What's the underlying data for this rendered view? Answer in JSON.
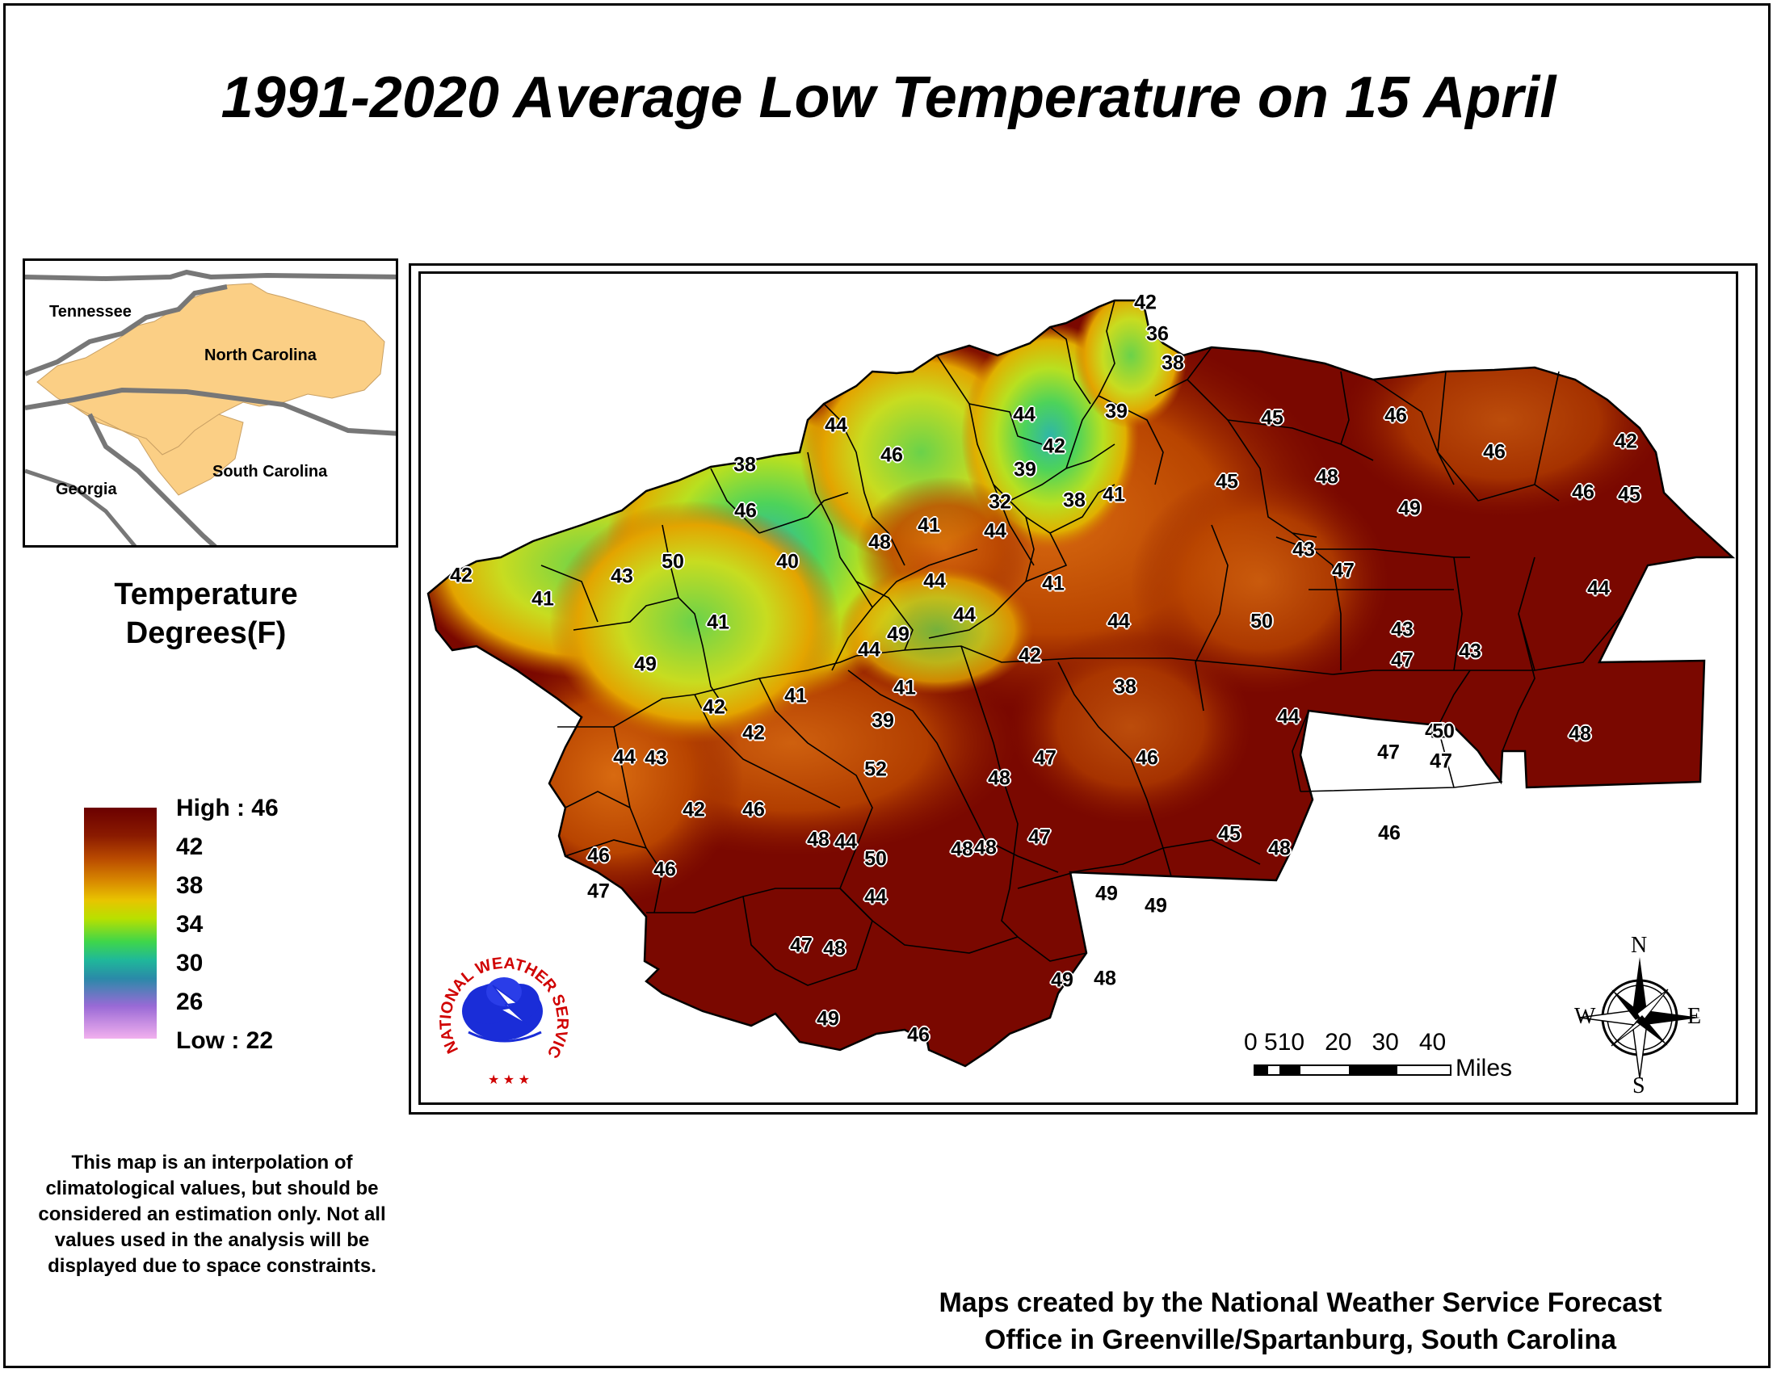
{
  "title": "1991-2020 Average Low Temperature on 15 April",
  "inset": {
    "labels": {
      "tennessee": "Tennessee",
      "north_carolina": "North Carolina",
      "georgia": "Georgia",
      "south_carolina": "South Carolina"
    },
    "highlight_color": "#fbcf85"
  },
  "legend": {
    "title_line1": "Temperature",
    "title_line2": "Degrees(F)",
    "high": "High : 46",
    "low": "Low : 22",
    "ticks": [
      "42",
      "38",
      "34",
      "30",
      "26"
    ]
  },
  "note": "This map is an interpolation of climatological values, but should be considered an estimation only. Not all values used in the analysis will be displayed due to space constraints.",
  "credit_line1": "Maps created by the National Weather Service Forecast",
  "credit_line2": "Office in Greenville/Spartanburg, South Carolina",
  "scale": {
    "numbers": "0 510   20   30   40",
    "unit": "Miles"
  },
  "logo": {
    "text": "NATIONAL WEATHER SERVICE"
  },
  "compass": {
    "n": "N",
    "s": "S",
    "e": "E",
    "w": "W"
  },
  "station_values": [
    "42",
    "36",
    "38",
    "39",
    "45",
    "46",
    "42",
    "44",
    "45",
    "48",
    "46",
    "49",
    "44",
    "42",
    "39",
    "32",
    "44",
    "41",
    "46",
    "38",
    "46",
    "38",
    "41",
    "46",
    "45",
    "48",
    "43",
    "47",
    "44",
    "40",
    "41",
    "41",
    "44",
    "44",
    "43",
    "47",
    "42",
    "41",
    "43",
    "50",
    "50",
    "44",
    "43",
    "49",
    "44",
    "49",
    "42",
    "41",
    "41",
    "42",
    "38",
    "44",
    "42",
    "48",
    "47",
    "42",
    "39",
    "44",
    "43",
    "42",
    "46",
    "52",
    "48",
    "47",
    "46",
    "47",
    "50",
    "48",
    "44",
    "50",
    "48",
    "47",
    "46",
    "45",
    "46",
    "47",
    "46",
    "44",
    "49",
    "49",
    "47",
    "48",
    "49",
    "48",
    "48",
    "49",
    "46",
    "48"
  ],
  "colors": {
    "dark_red": "#6b0000",
    "accent_red": "#d00000",
    "nws_blue": "#1a2dd8"
  }
}
